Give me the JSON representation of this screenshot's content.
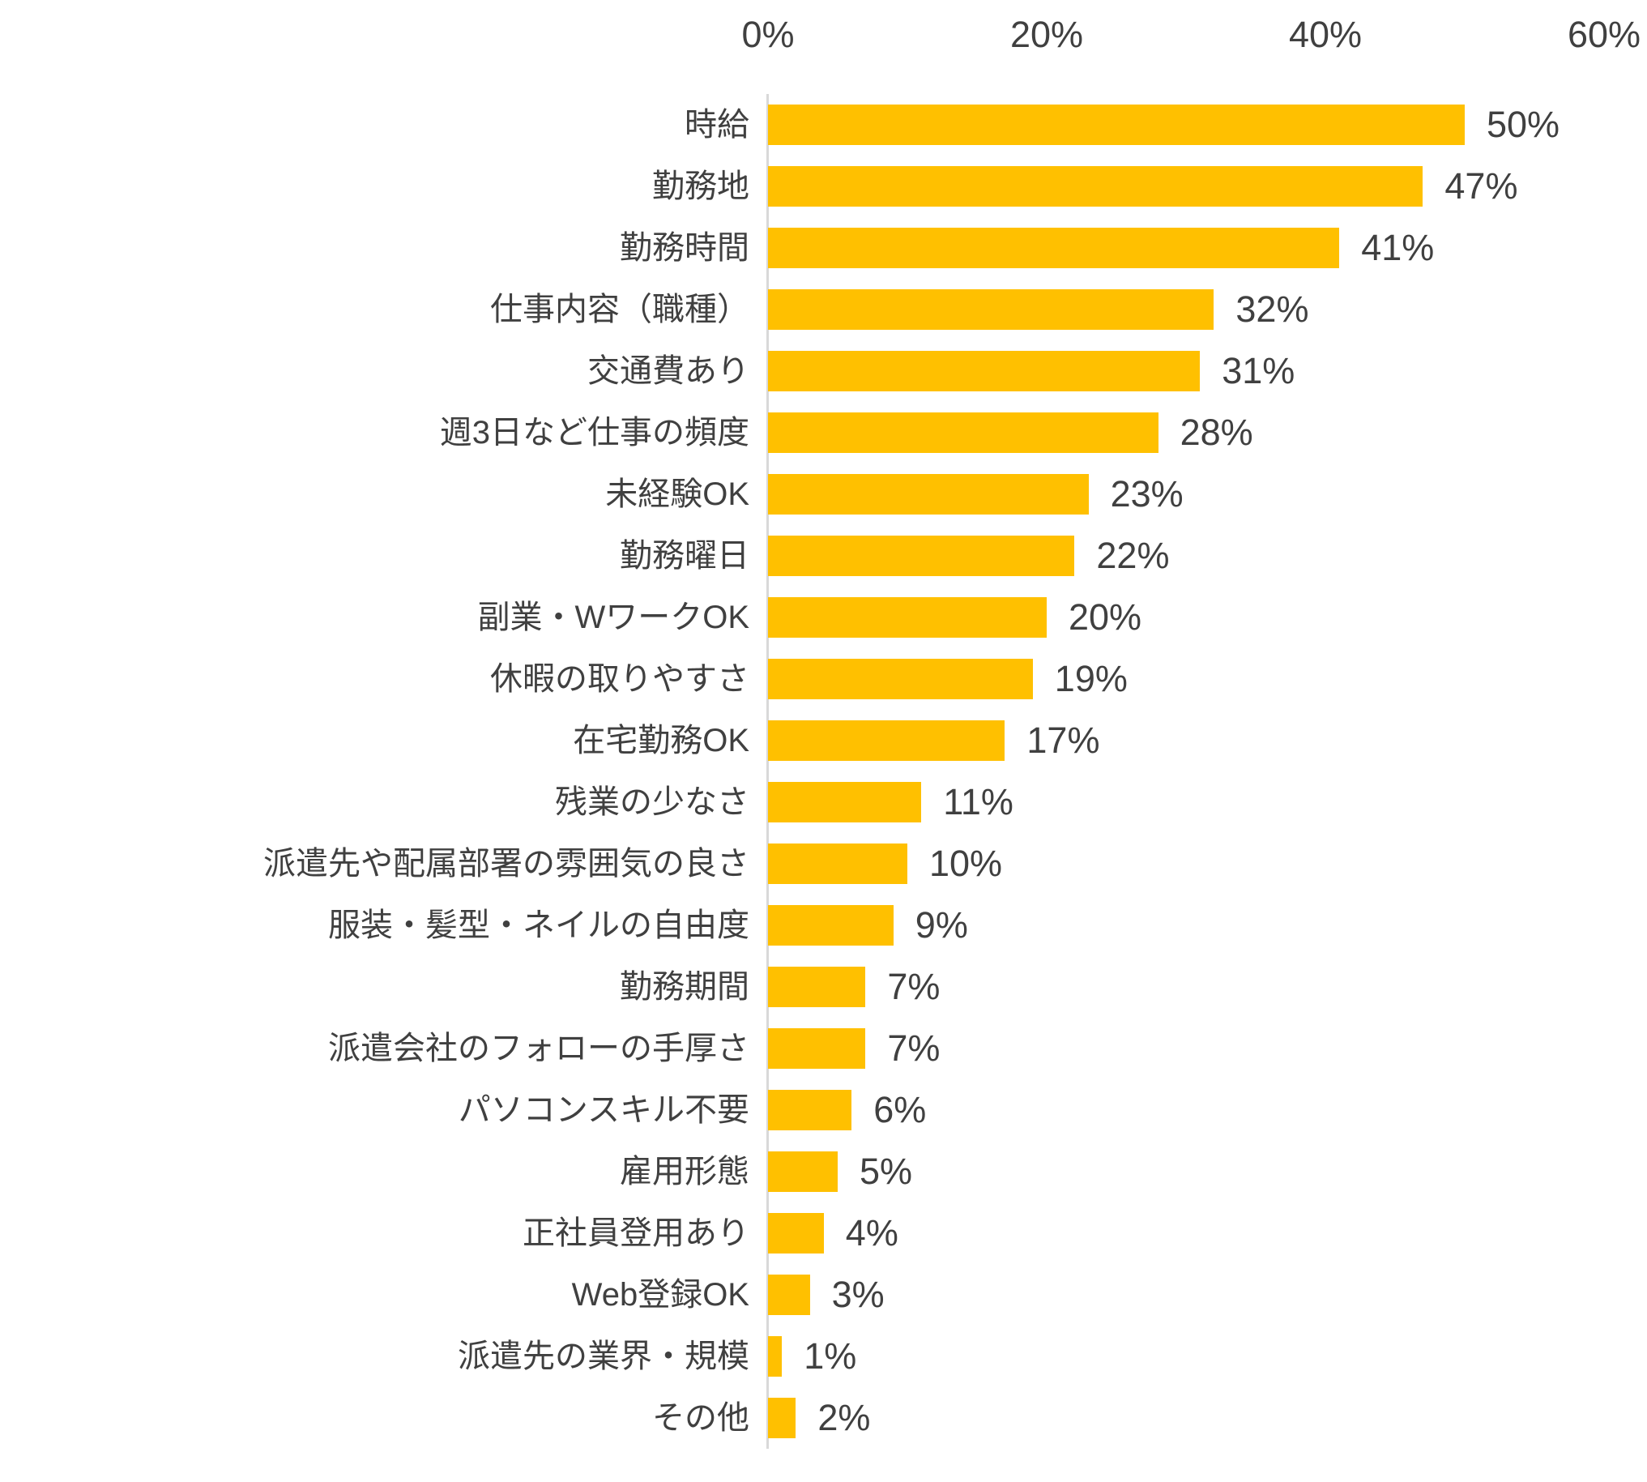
{
  "chart_data": {
    "type": "bar",
    "orientation": "horizontal",
    "title": "",
    "xlabel": "",
    "ylabel": "",
    "xlim": [
      0,
      60
    ],
    "x_ticks": [
      "0%",
      "20%",
      "40%",
      "60%"
    ],
    "x_tick_values": [
      0,
      20,
      40,
      60
    ],
    "axis_labels_position": "top",
    "grid": false,
    "legend": false,
    "value_suffix": "%",
    "categories": [
      "時給",
      "勤務地",
      "勤務時間",
      "仕事内容（職種）",
      "交通費あり",
      "週3日など仕事の頻度",
      "未経験OK",
      "勤務曜日",
      "副業・WワークOK",
      "休暇の取りやすさ",
      "在宅勤務OK",
      "残業の少なさ",
      "派遣先や配属部署の雰囲気の良さ",
      "服装・髪型・ネイルの自由度",
      "勤務期間",
      "派遣会社のフォローの手厚さ",
      "パソコンスキル不要",
      "雇用形態",
      "正社員登用あり",
      "Web登録OK",
      "派遣先の業界・規模",
      "その他"
    ],
    "values": [
      50,
      47,
      41,
      32,
      31,
      28,
      23,
      22,
      20,
      19,
      17,
      11,
      10,
      9,
      7,
      7,
      6,
      5,
      4,
      3,
      1,
      2
    ],
    "data_labels": [
      "50%",
      "47%",
      "41%",
      "32%",
      "31%",
      "28%",
      "23%",
      "22%",
      "20%",
      "19%",
      "17%",
      "11%",
      "10%",
      "9%",
      "7%",
      "7%",
      "6%",
      "5%",
      "4%",
      "3%",
      "1%",
      "2%"
    ],
    "colors": {
      "bar": "#ffc000",
      "axis_line": "#d9d9d9",
      "text": "#404040",
      "background": "#ffffff"
    }
  }
}
